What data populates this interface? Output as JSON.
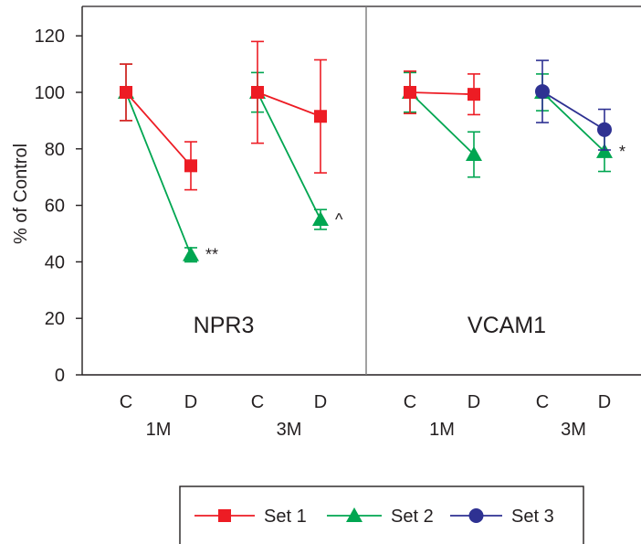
{
  "chart_data": {
    "type": "line",
    "ylabel": "% of Control",
    "ylim": [
      0,
      130
    ],
    "yticks": [
      0,
      20,
      40,
      60,
      80,
      100,
      120
    ],
    "grid": false,
    "legend_position": "bottom-center",
    "panels": [
      {
        "label": "NPR3",
        "groups": [
          {
            "name": "1M",
            "categories": [
              "C",
              "D"
            ],
            "series": [
              {
                "name": "Set 1",
                "values": [
                  100,
                  74
                ],
                "errors": [
                  10,
                  8.5
                ]
              },
              {
                "name": "Set 2",
                "values": [
                  100,
                  42.5
                ],
                "errors": [
                  10,
                  2.5
                ],
                "annotations": [
                  "",
                  "**"
                ]
              }
            ]
          },
          {
            "name": "3M",
            "categories": [
              "C",
              "D"
            ],
            "series": [
              {
                "name": "Set 1",
                "values": [
                  100,
                  91.5
                ],
                "errors": [
                  18,
                  20
                ]
              },
              {
                "name": "Set 2",
                "values": [
                  100,
                  55
                ],
                "errors": [
                  7,
                  3.5
                ],
                "annotations": [
                  "",
                  "^"
                ]
              }
            ]
          }
        ]
      },
      {
        "label": "VCAM1",
        "groups": [
          {
            "name": "1M",
            "categories": [
              "C",
              "D"
            ],
            "series": [
              {
                "name": "Set 1",
                "values": [
                  100,
                  99.3
                ],
                "errors": [
                  7.5,
                  7.2
                ]
              },
              {
                "name": "Set 2",
                "values": [
                  100,
                  78
                ],
                "errors": [
                  7,
                  8
                ]
              }
            ]
          },
          {
            "name": "3M",
            "categories": [
              "C",
              "D"
            ],
            "series": [
              {
                "name": "Set 3",
                "values": [
                  100.3,
                  86.8
                ],
                "errors": [
                  11,
                  7.2
                ]
              },
              {
                "name": "Set 2",
                "values": [
                  100,
                  79
                ],
                "errors": [
                  6.5,
                  7
                ],
                "annotations": [
                  "",
                  "*"
                ]
              }
            ]
          }
        ]
      }
    ],
    "legend": [
      {
        "name": "Set 1",
        "color": "#ed1c24",
        "marker": "square"
      },
      {
        "name": "Set 2",
        "color": "#00a651",
        "marker": "triangle"
      },
      {
        "name": "Set 3",
        "color": "#2e3192",
        "marker": "circle"
      }
    ]
  }
}
